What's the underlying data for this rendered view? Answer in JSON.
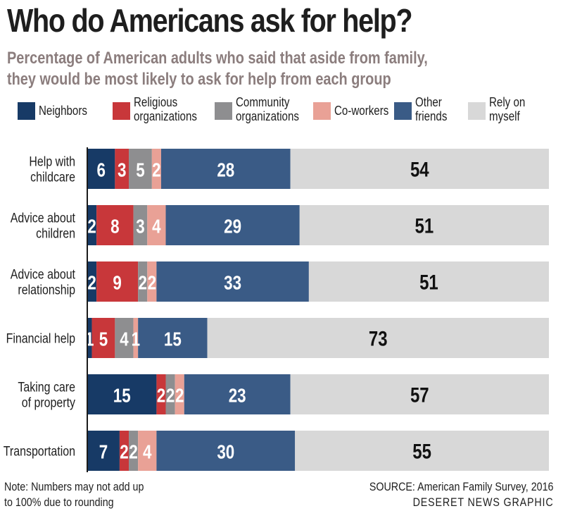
{
  "title": "Who do Americans ask for help?",
  "subtitle_line1": "Percentage of American adults who said that aside from family,",
  "subtitle_line2": "they would be most likely to ask for help from each group",
  "legend": [
    {
      "label": "Neighbors",
      "color": "#173a66"
    },
    {
      "label": "Religious\norganizations",
      "color": "#c8373a"
    },
    {
      "label": "Community\norganizations",
      "color": "#8e8e90"
    },
    {
      "label": "Co-workers",
      "color": "#e9a196"
    },
    {
      "label": "Other\nfriends",
      "color": "#3a5b86"
    },
    {
      "label": "Rely on\nmyself",
      "color": "#d8d8d8"
    }
  ],
  "footnote": "Note: Numbers may not add up\nto 100% due to rounding",
  "source": "SOURCE: American Family Survey, 2016",
  "credit": "DESERET NEWS GRAPHIC",
  "chart_data": {
    "type": "bar",
    "orientation": "horizontal",
    "stacked": true,
    "categories": [
      "Help with\nchildcare",
      "Advice about\nchildren",
      "Advice about\nrelationship",
      "Financial help",
      "Taking care\nof property",
      "Transportation"
    ],
    "series": [
      {
        "name": "Neighbors",
        "values": [
          6,
          2,
          2,
          1,
          15,
          7
        ]
      },
      {
        "name": "Religious organizations",
        "values": [
          3,
          8,
          9,
          5,
          2,
          2
        ]
      },
      {
        "name": "Community organizations",
        "values": [
          5,
          3,
          2,
          4,
          2,
          2
        ]
      },
      {
        "name": "Co-workers",
        "values": [
          2,
          4,
          2,
          1,
          2,
          4
        ]
      },
      {
        "name": "Other friends",
        "values": [
          28,
          29,
          33,
          15,
          23,
          30
        ]
      },
      {
        "name": "Rely on myself",
        "values": [
          54,
          51,
          51,
          73,
          57,
          55
        ]
      }
    ],
    "value_labels": [
      [
        "6",
        "3",
        "5",
        "2",
        "28",
        "54"
      ],
      [
        "2",
        "8",
        "3",
        "4",
        "29",
        "51"
      ],
      [
        "2",
        "9",
        "2",
        "2",
        "33",
        "51"
      ],
      [
        "1",
        "5",
        "4",
        "1",
        "15",
        "73"
      ],
      [
        "15",
        "2",
        "2",
        "2",
        "23",
        "57"
      ],
      [
        "7",
        "2",
        "2",
        "4",
        "30",
        "55"
      ]
    ],
    "xlim": [
      0,
      100
    ]
  }
}
